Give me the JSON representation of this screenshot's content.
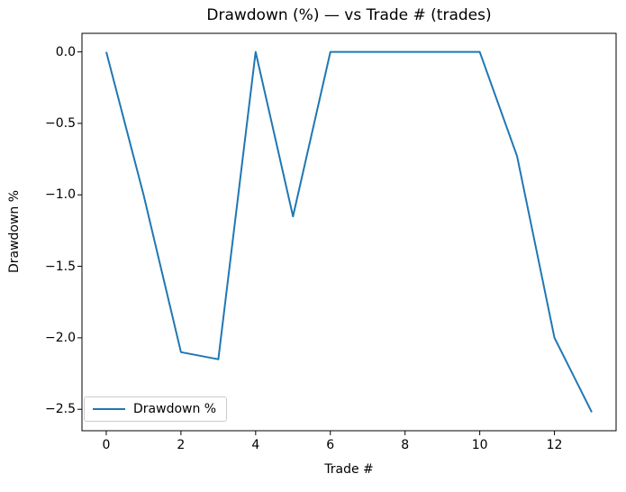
{
  "figure": {
    "background": "#ffffff",
    "spine_color": "#000000"
  },
  "chart_data": {
    "type": "line",
    "title": "Drawdown (%) — vs Trade # (trades)",
    "xlabel": "Trade #",
    "ylabel": "Drawdown %",
    "x": [
      0,
      1,
      2,
      3,
      4,
      5,
      6,
      7,
      8,
      9,
      10,
      11,
      12,
      13
    ],
    "series": [
      {
        "name": "Drawdown %",
        "color": "#1f77b4",
        "values": [
          0.0,
          -1.0,
          -2.1,
          -2.15,
          0.0,
          -1.15,
          0.0,
          0.0,
          0.0,
          0.0,
          0.0,
          -0.73,
          -2.0,
          -2.52
        ]
      }
    ],
    "xlim": [
      -0.65,
      13.65
    ],
    "ylim": [
      -2.65,
      0.13
    ],
    "xticks": {
      "values": [
        0,
        2,
        4,
        6,
        8,
        10,
        12
      ],
      "labels": [
        "0",
        "2",
        "4",
        "6",
        "8",
        "10",
        "12"
      ]
    },
    "yticks": {
      "values": [
        0.0,
        -0.5,
        -1.0,
        -1.5,
        -2.0,
        -2.5
      ],
      "labels": [
        "0.0",
        "−0.5",
        "−1.0",
        "−1.5",
        "−2.0",
        "−2.5"
      ]
    },
    "grid": false,
    "legend": {
      "position": "lower left",
      "entries": [
        "Drawdown %"
      ]
    }
  }
}
